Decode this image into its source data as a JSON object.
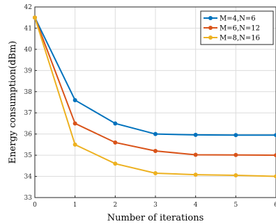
{
  "chart_data": {
    "type": "line",
    "title": "",
    "xlabel": "Number of iterations",
    "ylabel": "Energy consumption(dBm)",
    "x": [
      0,
      1,
      2,
      3,
      4,
      5,
      6
    ],
    "xlim": [
      0,
      6
    ],
    "ylim": [
      33,
      42
    ],
    "xticks": [
      "0",
      "1",
      "2",
      "3",
      "4",
      "5",
      "6"
    ],
    "yticks": [
      "33",
      "34",
      "35",
      "36",
      "37",
      "38",
      "39",
      "40",
      "41",
      "42"
    ],
    "grid": true,
    "legend_position": "top-right",
    "series": [
      {
        "name": "M=4,N=6",
        "color": "#0072BD",
        "values": [
          41.5,
          37.6,
          36.5,
          36.0,
          35.96,
          35.95,
          35.95
        ]
      },
      {
        "name": "M=6,N=12",
        "color": "#D95319",
        "values": [
          41.5,
          36.5,
          35.6,
          35.2,
          35.02,
          35.01,
          35.0
        ]
      },
      {
        "name": "M=8,N=16",
        "color": "#EDB120",
        "values": [
          41.5,
          35.5,
          34.6,
          34.15,
          34.08,
          34.05,
          34.0
        ]
      }
    ]
  }
}
